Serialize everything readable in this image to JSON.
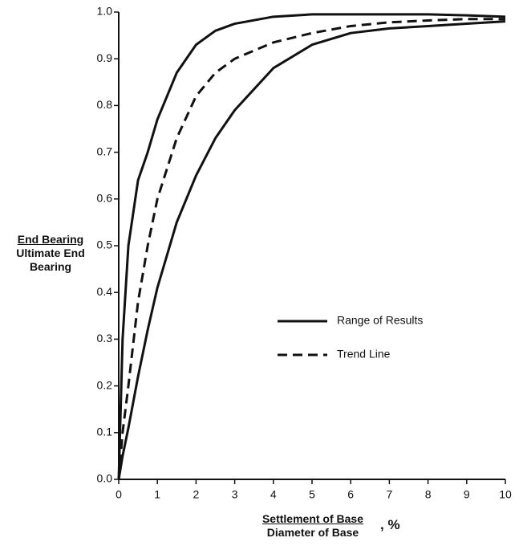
{
  "chart_data": {
    "type": "line",
    "y_label_numerator": "End Bearing",
    "y_label_denominator": "Ultimate End Bearing",
    "x_label_numerator": "Settlement of Base",
    "x_label_denominator": "Diameter of Base",
    "x_label_suffix": ", %",
    "x": [
      0,
      0.1,
      0.25,
      0.5,
      0.75,
      1,
      1.5,
      2,
      2.5,
      3,
      4,
      5,
      6,
      7,
      8,
      9,
      10
    ],
    "series": [
      {
        "name": "Range of Results",
        "color": "#111111",
        "dashed": false,
        "values": [
          0,
          0.3,
          0.5,
          0.64,
          0.7,
          0.77,
          0.87,
          0.93,
          0.96,
          0.975,
          0.99,
          0.995,
          0.995,
          0.995,
          0.995,
          0.993,
          0.99
        ]
      },
      {
        "name": "Trend Line",
        "color": "#111111",
        "dashed": true,
        "values": [
          0,
          0.1,
          0.2,
          0.38,
          0.5,
          0.6,
          0.73,
          0.82,
          0.87,
          0.9,
          0.935,
          0.955,
          0.97,
          0.978,
          0.982,
          0.985,
          0.985
        ]
      },
      {
        "name": "Range of Results",
        "color": "#111111",
        "dashed": false,
        "values": [
          0,
          0.05,
          0.11,
          0.22,
          0.32,
          0.41,
          0.55,
          0.65,
          0.73,
          0.79,
          0.88,
          0.93,
          0.955,
          0.965,
          0.97,
          0.975,
          0.98
        ]
      }
    ],
    "xlim": [
      0,
      10
    ],
    "ylim": [
      0,
      1
    ],
    "xticks": [
      0,
      1,
      2,
      3,
      4,
      5,
      6,
      7,
      8,
      9,
      10
    ],
    "yticks": [
      {
        "value": 0,
        "label": "0.0"
      },
      0.1,
      0.2,
      0.3,
      0.4,
      0.5,
      0.6,
      0.7,
      0.8,
      0.9,
      {
        "value": 1,
        "label": "1.0"
      }
    ],
    "grid": false
  }
}
